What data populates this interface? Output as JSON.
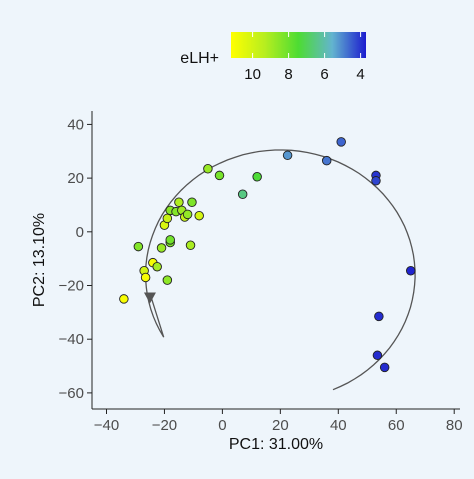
{
  "chart_data": {
    "type": "scatter",
    "xlabel": "PC1: 31.00%",
    "ylabel": "PC2: 13.10%",
    "xlim": [
      -45,
      82
    ],
    "ylim": [
      -66,
      45
    ],
    "x_ticks": [
      -40,
      -20,
      0,
      20,
      40,
      60,
      80
    ],
    "y_ticks": [
      -60,
      -40,
      -20,
      0,
      20,
      40
    ],
    "grid": false,
    "legend": {
      "title": "eLH+",
      "type": "colorbar",
      "placement": "top",
      "range": [
        11.2,
        3.7
      ],
      "ticks": [
        10,
        8,
        6,
        4
      ],
      "colors": [
        "#ffff00",
        "#b7ee1f",
        "#4ddc33",
        "#63b4cf",
        "#1c1ccf"
      ]
    },
    "points": [
      {
        "x": -34,
        "y": -25,
        "elh": 11.0
      },
      {
        "x": -29,
        "y": -5.5,
        "elh": 8.4
      },
      {
        "x": -27,
        "y": -14.5,
        "elh": 10.0
      },
      {
        "x": -26.5,
        "y": -17,
        "elh": 11.0
      },
      {
        "x": -24,
        "y": -11.5,
        "elh": 11.0
      },
      {
        "x": -22.5,
        "y": -13,
        "elh": 9.0
      },
      {
        "x": -21,
        "y": -6,
        "elh": 8.8
      },
      {
        "x": -20,
        "y": 2.5,
        "elh": 10.2
      },
      {
        "x": -19,
        "y": -18,
        "elh": 8.6
      },
      {
        "x": -19,
        "y": 5,
        "elh": 9.8
      },
      {
        "x": -18,
        "y": -4,
        "elh": 8.3
      },
      {
        "x": -18,
        "y": -3,
        "elh": 8.1
      },
      {
        "x": -18,
        "y": 8,
        "elh": 8.5
      },
      {
        "x": -16,
        "y": 7.5,
        "elh": 8.4
      },
      {
        "x": -15,
        "y": 11,
        "elh": 9.2
      },
      {
        "x": -14,
        "y": 8,
        "elh": 8.9
      },
      {
        "x": -13,
        "y": 5.5,
        "elh": 9.7
      },
      {
        "x": -12,
        "y": 6.5,
        "elh": 8.7
      },
      {
        "x": -11,
        "y": -5,
        "elh": 9.1
      },
      {
        "x": -10.5,
        "y": 11,
        "elh": 8.3
      },
      {
        "x": -8,
        "y": 6,
        "elh": 10.1
      },
      {
        "x": -5,
        "y": 23.5,
        "elh": 8.8
      },
      {
        "x": -1,
        "y": 21,
        "elh": 8.2
      },
      {
        "x": 7,
        "y": 14,
        "elh": 6.5
      },
      {
        "x": 12,
        "y": 20.5,
        "elh": 7.4
      },
      {
        "x": 22.5,
        "y": 28.5,
        "elh": 5.2
      },
      {
        "x": 36,
        "y": 26.5,
        "elh": 4.8
      },
      {
        "x": 41,
        "y": 33.5,
        "elh": 4.6
      },
      {
        "x": 53,
        "y": 21,
        "elh": 4.0
      },
      {
        "x": 53,
        "y": 19,
        "elh": 4.2
      },
      {
        "x": 54,
        "y": -31.5,
        "elh": 3.9
      },
      {
        "x": 53.5,
        "y": -46,
        "elh": 3.9
      },
      {
        "x": 56,
        "y": -50.5,
        "elh": 3.9
      },
      {
        "x": 65,
        "y": -14.5,
        "elh": 3.8
      }
    ],
    "trajectory": {
      "description_free": true,
      "center": [
        20,
        -16
      ],
      "rx": 46.5,
      "ry": 46.5,
      "angle_start_deg": 210,
      "angle_end_deg": -67,
      "arrow_end": [
        -25,
        -23
      ]
    }
  }
}
